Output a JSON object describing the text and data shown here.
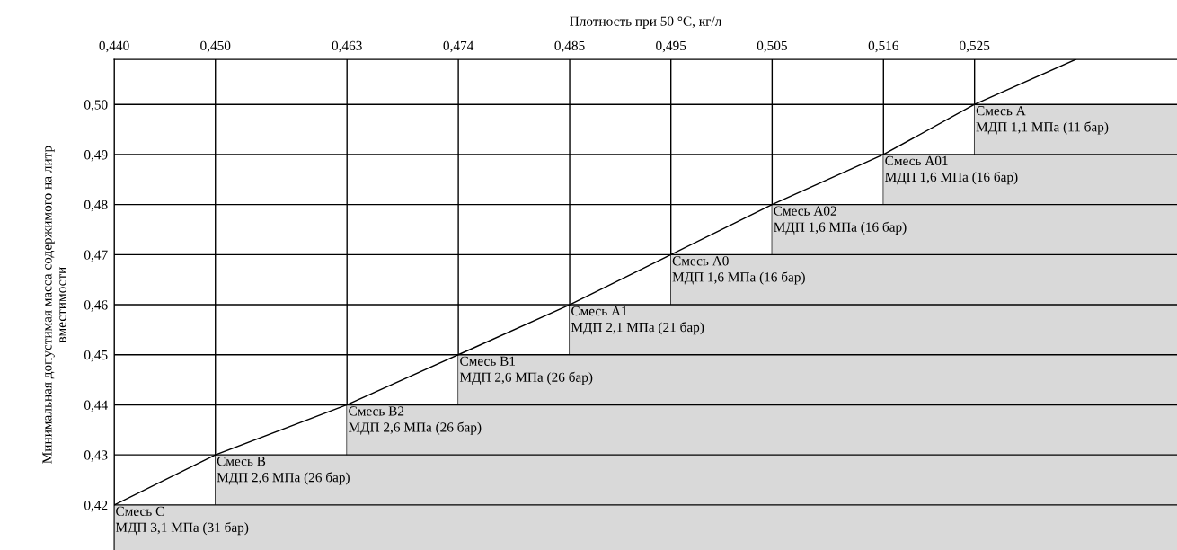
{
  "chart_data": {
    "type": "area",
    "xlabel": "Плотность при 50 °C, кг/л",
    "ylabel": "Минимальная допустимая масса содержимого на литр\nвместимости",
    "xlim": [
      0.44,
      0.545
    ],
    "ylim": [
      0.411,
      0.509
    ],
    "xticks": [
      {
        "value": 0.44,
        "label": "0,440"
      },
      {
        "value": 0.45,
        "label": "0,450"
      },
      {
        "value": 0.463,
        "label": "0,463"
      },
      {
        "value": 0.474,
        "label": "0,474"
      },
      {
        "value": 0.485,
        "label": "0,485"
      },
      {
        "value": 0.495,
        "label": "0,495"
      },
      {
        "value": 0.505,
        "label": "0,505"
      },
      {
        "value": 0.516,
        "label": "0,516"
      },
      {
        "value": 0.525,
        "label": "0,525"
      }
    ],
    "yticks": [
      {
        "value": 0.42,
        "label": "0,42"
      },
      {
        "value": 0.43,
        "label": "0,43"
      },
      {
        "value": 0.44,
        "label": "0,44"
      },
      {
        "value": 0.45,
        "label": "0,45"
      },
      {
        "value": 0.46,
        "label": "0,46"
      },
      {
        "value": 0.47,
        "label": "0,47"
      },
      {
        "value": 0.48,
        "label": "0,48"
      },
      {
        "value": 0.49,
        "label": "0,49"
      },
      {
        "value": 0.5,
        "label": "0,50"
      }
    ],
    "grid": true,
    "legend": false,
    "series": [
      {
        "color": "#d9d9d9",
        "x": [
          0.44,
          0.45,
          0.45,
          0.463,
          0.463,
          0.474,
          0.474,
          0.485,
          0.485,
          0.495,
          0.495,
          0.505,
          0.505,
          0.516,
          0.516,
          0.525,
          0.525,
          0.545
        ],
        "values": [
          0.42,
          0.42,
          0.43,
          0.43,
          0.44,
          0.44,
          0.45,
          0.45,
          0.46,
          0.46,
          0.47,
          0.47,
          0.48,
          0.48,
          0.49,
          0.49,
          0.5,
          0.5
        ]
      },
      {
        "type": "line",
        "color": "#000000",
        "x": [
          0.44,
          0.45,
          0.463,
          0.474,
          0.485,
          0.495,
          0.505,
          0.516,
          0.525,
          0.535
        ],
        "values": [
          0.42,
          0.43,
          0.44,
          0.45,
          0.46,
          0.47,
          0.48,
          0.49,
          0.5,
          0.509
        ]
      }
    ],
    "annotations": [
      {
        "text": "Смесь А\nМДП 1,1 МПа (11 бар)",
        "x": 0.525,
        "y": 0.5
      },
      {
        "text": "Смесь А01\nМДП 1,6 МПа (16 бар)",
        "x": 0.516,
        "y": 0.49
      },
      {
        "text": "Смесь А02\nМДП 1,6 МПа (16 бар)",
        "x": 0.505,
        "y": 0.48
      },
      {
        "text": "Смесь А0\nМДП 1,6 МПа (16 бар)",
        "x": 0.495,
        "y": 0.47
      },
      {
        "text": "Смесь А1\nМДП 2,1 МПа (21 бар)",
        "x": 0.485,
        "y": 0.46
      },
      {
        "text": "Смесь В1\nМДП 2,6 МПа (26 бар)",
        "x": 0.474,
        "y": 0.45
      },
      {
        "text": "Смесь В2\nМДП 2,6 МПа (26 бар)",
        "x": 0.463,
        "y": 0.44
      },
      {
        "text": "Смесь В\nМДП 2,6 МПа (26 бар)",
        "x": 0.45,
        "y": 0.43
      },
      {
        "text": "Смесь С\nМДП 3,1 МПа (31 бар)",
        "x": 0.44,
        "y": 0.42
      }
    ]
  }
}
